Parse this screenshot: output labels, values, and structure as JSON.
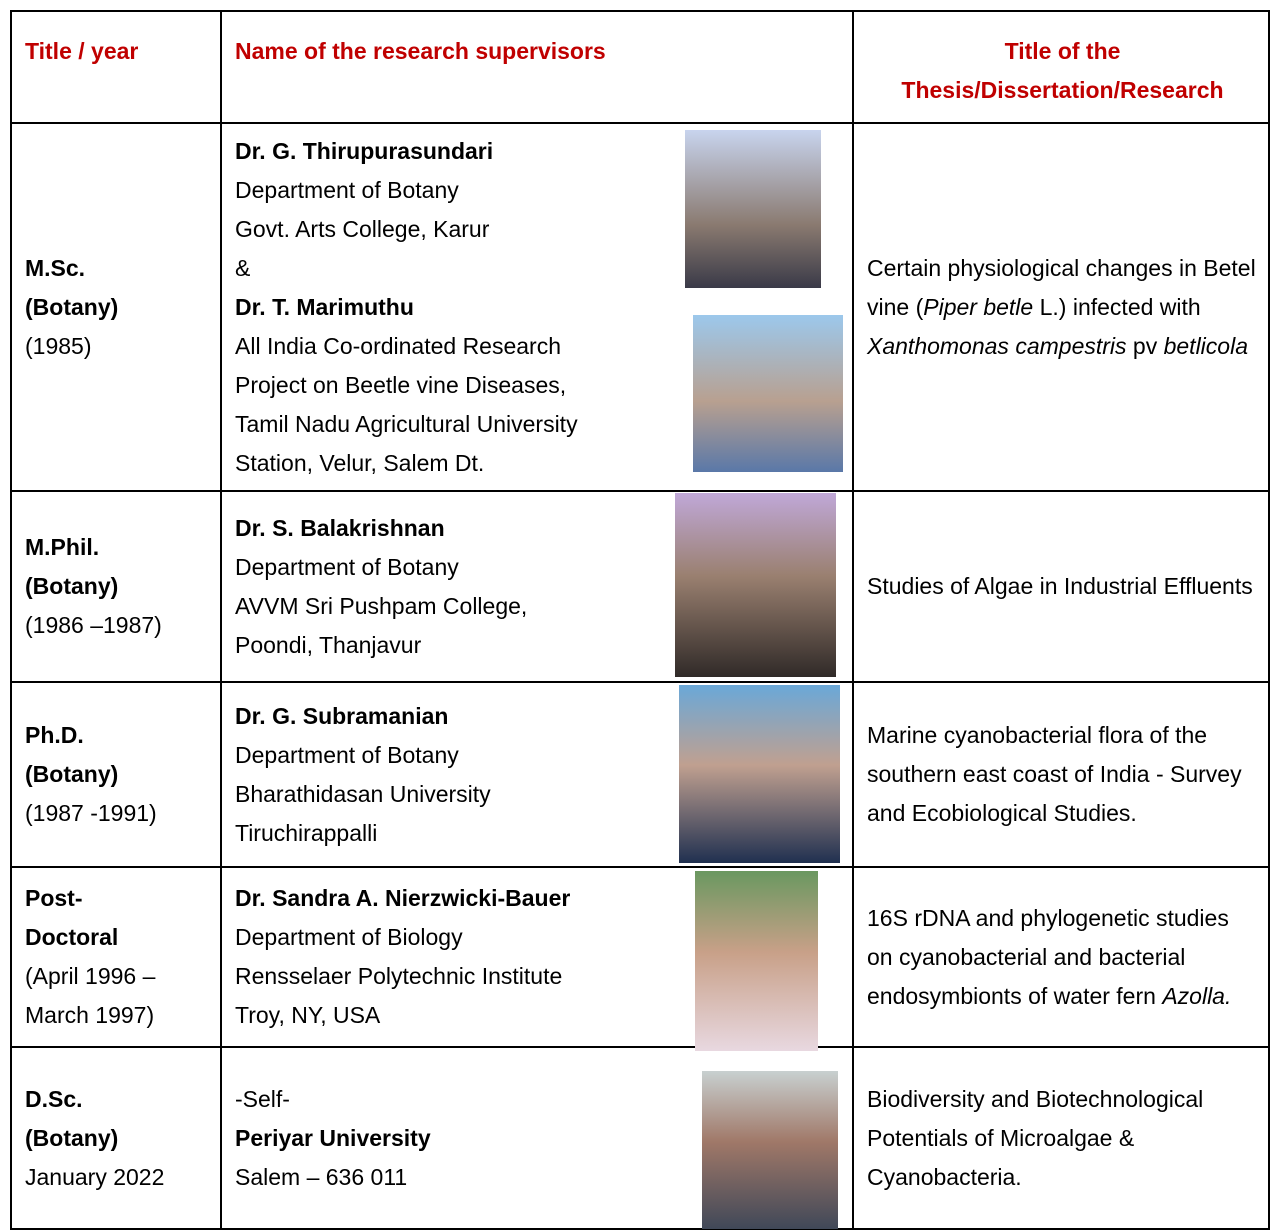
{
  "table": {
    "header": [
      {
        "lines": [
          [
            {
              "text": "Title / year"
            }
          ]
        ]
      },
      {
        "lines": [
          [
            {
              "text": "Name of the research supervisors"
            }
          ]
        ]
      },
      {
        "lines": [
          [
            {
              "text": "Title of the"
            }
          ],
          [
            {
              "text": "Thesis/Dissertation/Research"
            }
          ]
        ]
      }
    ],
    "rows": [
      {
        "cells": [
          {
            "lines": [
              [
                {
                  "text": "M.Sc.",
                  "bold": true
                }
              ],
              [
                {
                  "text": "(Botany)",
                  "bold": true
                }
              ],
              [
                {
                  "text": "(1985)"
                }
              ]
            ]
          },
          {
            "lines": [
              [
                {
                  "text": "Dr.  G. Thirupurasundari",
                  "bold": true
                }
              ],
              [
                {
                  "text": "Department of Botany"
                }
              ],
              [
                {
                  "text": "Govt. Arts College, Karur"
                }
              ],
              [
                {
                  "text": " &"
                }
              ],
              [
                {
                  "text": "Dr. T. Marimuthu",
                  "bold": true
                }
              ],
              [
                {
                  "text": "All India Co-ordinated Research"
                }
              ],
              [
                {
                  "text": "Project on Beetle vine Diseases,"
                }
              ],
              [
                {
                  "text": "Tamil Nadu Agricultural University"
                }
              ],
              [
                {
                  "text": "Station, Velur, Salem Dt."
                }
              ]
            ]
          },
          {
            "lines": [
              [
                {
                  "text": "Certain physiological changes in Betel vine ("
                },
                {
                  "text": "Piper betle",
                  "italic": true
                },
                {
                  "text": " L.) infected with "
                },
                {
                  "text": "Xanthomonas campestris",
                  "italic": true
                },
                {
                  "text": " pv "
                },
                {
                  "text": "betlicola",
                  "italic": true
                }
              ]
            ]
          }
        ]
      },
      {
        "cells": [
          {
            "lines": [
              [
                {
                  "text": "M.Phil.",
                  "bold": true
                }
              ],
              [
                {
                  "text": "(Botany)",
                  "bold": true
                }
              ],
              [
                {
                  "text": "(1986 –1987)"
                }
              ]
            ]
          },
          {
            "lines": [
              [
                {
                  "text": "Dr. S. Balakrishnan",
                  "bold": true
                }
              ],
              [
                {
                  "text": "Department of Botany"
                }
              ],
              [
                {
                  "text": "AVVM Sri Pushpam College,"
                }
              ],
              [
                {
                  "text": "Poondi, Thanjavur"
                }
              ]
            ]
          },
          {
            "lines": [
              [
                {
                  "text": "Studies of Algae in Industrial Effluents"
                }
              ]
            ]
          }
        ]
      },
      {
        "cells": [
          {
            "lines": [
              [
                {
                  "text": "Ph.D.",
                  "bold": true
                }
              ],
              [
                {
                  "text": "(Botany)",
                  "bold": true
                }
              ],
              [
                {
                  "text": "(1987 -1991)"
                }
              ]
            ]
          },
          {
            "lines": [
              [
                {
                  "text": "Dr. G. Subramanian",
                  "bold": true
                }
              ],
              [
                {
                  "text": "Department of Botany"
                }
              ],
              [
                {
                  "text": "Bharathidasan University"
                }
              ],
              [
                {
                  "text": "Tiruchirappalli"
                }
              ]
            ]
          },
          {
            "lines": [
              [
                {
                  "text": "Marine cyanobacterial flora of the southern east coast of India - Survey and Ecobiological Studies."
                }
              ]
            ]
          }
        ]
      },
      {
        "cells": [
          {
            "lines": [
              [
                {
                  "text": "Post-",
                  "bold": true
                }
              ],
              [
                {
                  "text": "Doctoral",
                  "bold": true
                }
              ],
              [
                {
                  "text": "(April 1996 –"
                }
              ],
              [
                {
                  "text": "March 1997)"
                }
              ]
            ]
          },
          {
            "lines": [
              [
                {
                  "text": "Dr. Sandra A. Nierzwicki-Bauer",
                  "bold": true
                }
              ],
              [
                {
                  "text": "Department of Biology"
                }
              ],
              [
                {
                  "text": "Rensselaer Polytechnic Institute"
                }
              ],
              [
                {
                  "text": "Troy, NY, USA"
                }
              ]
            ]
          },
          {
            "lines": [
              [
                {
                  "text": "16S rDNA and phylogenetic studies on cyanobacterial and bacterial endosymbionts of water fern "
                },
                {
                  "text": "Azolla.",
                  "italic": true
                }
              ]
            ]
          }
        ]
      },
      {
        "cells": [
          {
            "lines": [
              [
                {
                  "text": "D.Sc.",
                  "bold": true
                }
              ],
              [
                {
                  "text": "(Botany)",
                  "bold": true
                }
              ],
              [
                {
                  "text": "January 2022"
                }
              ]
            ]
          },
          {
            "lines": [
              [
                {
                  "text": "-Self-"
                }
              ],
              [
                {
                  "text": "Periyar University",
                  "bold": true
                }
              ],
              [
                {
                  "text": "Salem – 636 011"
                }
              ]
            ]
          },
          {
            "lines": [
              [
                {
                  "text": "Biodiversity and Biotechnological Potentials of Microalgae & Cyanobacteria."
                }
              ]
            ]
          }
        ]
      }
    ]
  }
}
